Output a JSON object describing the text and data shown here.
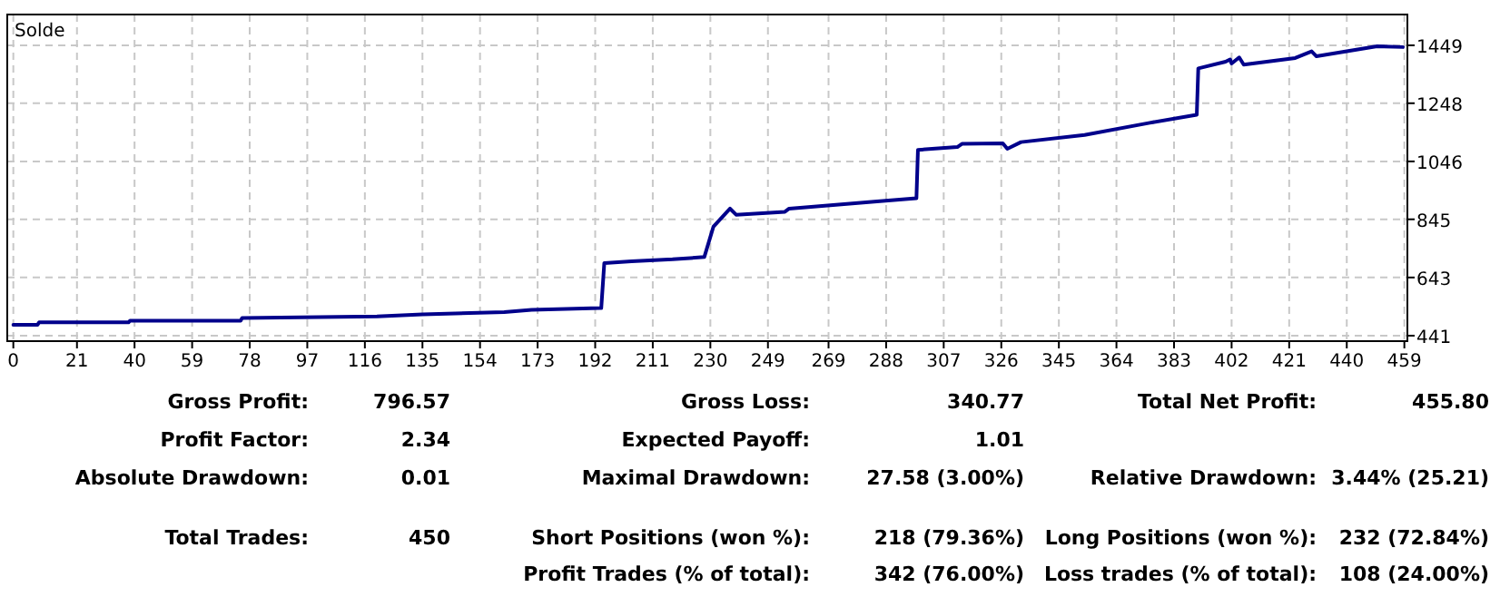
{
  "chart_data": {
    "type": "line",
    "x": [
      0,
      8,
      8.5,
      38,
      38.5,
      75,
      75.5,
      120,
      135,
      162,
      171,
      193.5,
      194,
      195,
      204,
      217.5,
      228,
      231,
      236.5,
      238.5,
      254.6,
      256,
      285,
      298,
      298.5,
      311.5,
      313,
      326.5,
      328,
      332.5,
      353.5,
      375,
      390.5,
      391,
      400,
      401.5,
      402,
      404.5,
      406,
      423,
      428.4,
      430,
      450,
      458.5
    ],
    "series": [
      {
        "name": "Solde",
        "color": "#00008b",
        "values": [
          479,
          479,
          487,
          487,
          493,
          493,
          502,
          508,
          515,
          523,
          531,
          537,
          537,
          693,
          699,
          706,
          714,
          819,
          882,
          861,
          871,
          882,
          907,
          918,
          1086,
          1096,
          1107,
          1109,
          1090,
          1113,
          1138,
          1180,
          1208,
          1369,
          1392,
          1400,
          1386,
          1407,
          1382,
          1405,
          1428,
          1411,
          1446,
          1443
        ]
      }
    ],
    "xlim": [
      -2,
      460
    ],
    "ylim": [
      422,
      1556
    ],
    "xticks": [
      0,
      21,
      40,
      59,
      78,
      97,
      116,
      135,
      154,
      173,
      192,
      211,
      230,
      249,
      269,
      288,
      307,
      326,
      345,
      364,
      383,
      402,
      421,
      440,
      459
    ],
    "yticks": [
      441,
      643,
      845,
      1046,
      1248,
      1449
    ],
    "grid": true,
    "legend": "top left",
    "line_style": "solid",
    "marker": "none",
    "annotations": [
      "Gross Profit:",
      "796.57",
      "Gross Loss:",
      "340.77",
      "Total Net Profit:",
      "455.80",
      "Profit Factor:",
      "2.34",
      "Expected Payoff:",
      "1.01",
      "Absolute Drawdown:",
      "0.01",
      "Maximal Drawdown:",
      "27.58 (3.00%)",
      "Relative Drawdown:",
      "3.44% (25.21)",
      "Total Trades:",
      "450",
      "Short Positions (won %):",
      "218 (79.36%)",
      "Long Positions (won %):",
      "232 (72.84%)",
      "Profit Trades (% of total):",
      "342 (76.00%)",
      "Loss trades (% of total):",
      "108 (24.00%)"
    ]
  }
}
